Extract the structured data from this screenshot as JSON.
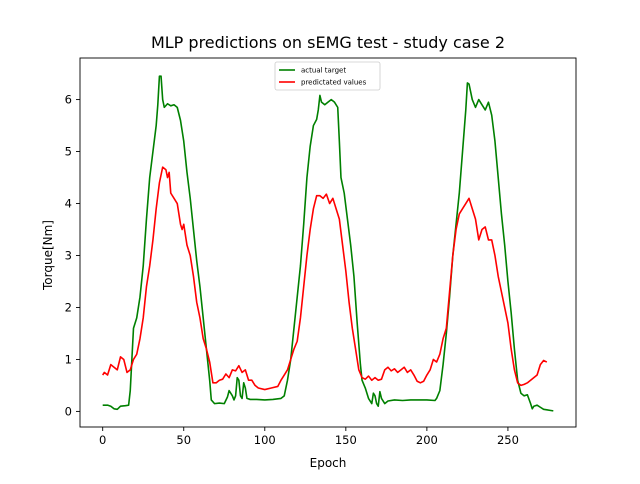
{
  "chart_data": {
    "type": "line",
    "title": "MLP predictions on sEMG test - study case 2",
    "xlabel": "Epoch",
    "ylabel": "Torque[Nm]",
    "xlim": [
      -14,
      292
    ],
    "ylim": [
      -0.3,
      6.8
    ],
    "xticks": [
      0,
      50,
      100,
      150,
      200,
      250
    ],
    "yticks": [
      0,
      1,
      2,
      3,
      4,
      5,
      6
    ],
    "grid": false,
    "legend": "top-center",
    "series": [
      {
        "name": "actual target",
        "color": "#008000",
        "points": [
          [
            0,
            0.12
          ],
          [
            3,
            0.12
          ],
          [
            5,
            0.1
          ],
          [
            7,
            0.05
          ],
          [
            9,
            0.04
          ],
          [
            11,
            0.1
          ],
          [
            14,
            0.11
          ],
          [
            16,
            0.12
          ],
          [
            17,
            0.4
          ],
          [
            18,
            1.0
          ],
          [
            19,
            1.6
          ],
          [
            21,
            1.8
          ],
          [
            23,
            2.2
          ],
          [
            25,
            2.8
          ],
          [
            27,
            3.7
          ],
          [
            29,
            4.5
          ],
          [
            31,
            5.0
          ],
          [
            33,
            5.5
          ],
          [
            34,
            5.9
          ],
          [
            35,
            6.45
          ],
          [
            36,
            6.45
          ],
          [
            37,
            6.0
          ],
          [
            38,
            5.85
          ],
          [
            40,
            5.92
          ],
          [
            42,
            5.88
          ],
          [
            44,
            5.9
          ],
          [
            46,
            5.85
          ],
          [
            48,
            5.6
          ],
          [
            50,
            5.2
          ],
          [
            52,
            4.6
          ],
          [
            54,
            4.1
          ],
          [
            56,
            3.5
          ],
          [
            58,
            2.9
          ],
          [
            60,
            2.4
          ],
          [
            62,
            1.8
          ],
          [
            64,
            1.2
          ],
          [
            66,
            0.6
          ],
          [
            67,
            0.22
          ],
          [
            69,
            0.15
          ],
          [
            72,
            0.16
          ],
          [
            75,
            0.15
          ],
          [
            77,
            0.28
          ],
          [
            78,
            0.4
          ],
          [
            80,
            0.3
          ],
          [
            81,
            0.22
          ],
          [
            82,
            0.3
          ],
          [
            83,
            0.65
          ],
          [
            84,
            0.6
          ],
          [
            85,
            0.3
          ],
          [
            86,
            0.25
          ],
          [
            87,
            0.55
          ],
          [
            88,
            0.45
          ],
          [
            89,
            0.25
          ],
          [
            91,
            0.23
          ],
          [
            95,
            0.23
          ],
          [
            100,
            0.22
          ],
          [
            105,
            0.23
          ],
          [
            110,
            0.25
          ],
          [
            112,
            0.3
          ],
          [
            114,
            0.6
          ],
          [
            116,
            1.0
          ],
          [
            118,
            1.6
          ],
          [
            120,
            2.2
          ],
          [
            122,
            2.8
          ],
          [
            124,
            3.6
          ],
          [
            126,
            4.5
          ],
          [
            128,
            5.1
          ],
          [
            130,
            5.5
          ],
          [
            132,
            5.62
          ],
          [
            133,
            5.8
          ],
          [
            134,
            6.08
          ],
          [
            135,
            5.95
          ],
          [
            137,
            5.9
          ],
          [
            139,
            5.95
          ],
          [
            141,
            6.0
          ],
          [
            143,
            5.95
          ],
          [
            145,
            5.85
          ],
          [
            146,
            5.2
          ],
          [
            147,
            4.5
          ],
          [
            149,
            4.2
          ],
          [
            151,
            3.7
          ],
          [
            153,
            3.2
          ],
          [
            155,
            2.6
          ],
          [
            157,
            1.7
          ],
          [
            159,
            0.9
          ],
          [
            160,
            0.6
          ],
          [
            162,
            0.45
          ],
          [
            164,
            0.25
          ],
          [
            166,
            0.15
          ],
          [
            167,
            0.35
          ],
          [
            168,
            0.3
          ],
          [
            169,
            0.15
          ],
          [
            170,
            0.1
          ],
          [
            171,
            0.38
          ],
          [
            172,
            0.25
          ],
          [
            174,
            0.15
          ],
          [
            176,
            0.2
          ],
          [
            180,
            0.22
          ],
          [
            185,
            0.21
          ],
          [
            190,
            0.22
          ],
          [
            195,
            0.22
          ],
          [
            200,
            0.22
          ],
          [
            205,
            0.21
          ],
          [
            206,
            0.25
          ],
          [
            208,
            0.4
          ],
          [
            210,
            0.9
          ],
          [
            212,
            1.5
          ],
          [
            214,
            2.2
          ],
          [
            216,
            3.0
          ],
          [
            218,
            3.6
          ],
          [
            220,
            4.2
          ],
          [
            222,
            5.0
          ],
          [
            224,
            5.8
          ],
          [
            225,
            6.32
          ],
          [
            226,
            6.3
          ],
          [
            228,
            6.0
          ],
          [
            230,
            5.85
          ],
          [
            232,
            6.0
          ],
          [
            234,
            5.9
          ],
          [
            236,
            5.8
          ],
          [
            238,
            5.95
          ],
          [
            240,
            5.7
          ],
          [
            242,
            5.2
          ],
          [
            244,
            4.5
          ],
          [
            246,
            3.8
          ],
          [
            248,
            3.2
          ],
          [
            250,
            2.5
          ],
          [
            252,
            1.9
          ],
          [
            254,
            1.2
          ],
          [
            256,
            0.6
          ],
          [
            258,
            0.35
          ],
          [
            260,
            0.3
          ],
          [
            262,
            0.32
          ],
          [
            264,
            0.15
          ],
          [
            265,
            0.05
          ],
          [
            266,
            0.1
          ],
          [
            268,
            0.12
          ],
          [
            270,
            0.08
          ],
          [
            272,
            0.04
          ],
          [
            274,
            0.03
          ],
          [
            276,
            0.02
          ],
          [
            278,
            0.01
          ]
        ]
      },
      {
        "name": "predictated values",
        "color": "#ff0000",
        "points": [
          [
            0,
            0.7
          ],
          [
            1,
            0.75
          ],
          [
            3,
            0.7
          ],
          [
            5,
            0.9
          ],
          [
            7,
            0.85
          ],
          [
            9,
            0.8
          ],
          [
            11,
            1.05
          ],
          [
            13,
            1.0
          ],
          [
            15,
            0.75
          ],
          [
            17,
            0.8
          ],
          [
            19,
            1.0
          ],
          [
            21,
            1.1
          ],
          [
            23,
            1.4
          ],
          [
            25,
            1.8
          ],
          [
            27,
            2.4
          ],
          [
            29,
            2.8
          ],
          [
            31,
            3.3
          ],
          [
            33,
            3.9
          ],
          [
            35,
            4.4
          ],
          [
            37,
            4.7
          ],
          [
            39,
            4.65
          ],
          [
            40,
            4.5
          ],
          [
            41,
            4.6
          ],
          [
            42,
            4.2
          ],
          [
            44,
            4.1
          ],
          [
            46,
            4.0
          ],
          [
            48,
            3.6
          ],
          [
            49,
            3.5
          ],
          [
            50,
            3.6
          ],
          [
            52,
            3.2
          ],
          [
            54,
            3.0
          ],
          [
            56,
            2.6
          ],
          [
            58,
            2.1
          ],
          [
            60,
            1.8
          ],
          [
            62,
            1.4
          ],
          [
            64,
            1.2
          ],
          [
            66,
            0.95
          ],
          [
            68,
            0.55
          ],
          [
            70,
            0.55
          ],
          [
            72,
            0.6
          ],
          [
            74,
            0.62
          ],
          [
            76,
            0.72
          ],
          [
            78,
            0.65
          ],
          [
            80,
            0.8
          ],
          [
            82,
            0.78
          ],
          [
            84,
            0.88
          ],
          [
            86,
            0.75
          ],
          [
            88,
            0.8
          ],
          [
            90,
            0.6
          ],
          [
            92,
            0.6
          ],
          [
            94,
            0.5
          ],
          [
            96,
            0.45
          ],
          [
            100,
            0.42
          ],
          [
            104,
            0.45
          ],
          [
            108,
            0.48
          ],
          [
            110,
            0.6
          ],
          [
            112,
            0.7
          ],
          [
            114,
            0.8
          ],
          [
            116,
            1.0
          ],
          [
            118,
            1.2
          ],
          [
            120,
            1.35
          ],
          [
            122,
            1.8
          ],
          [
            124,
            2.4
          ],
          [
            126,
            3.0
          ],
          [
            128,
            3.5
          ],
          [
            130,
            3.9
          ],
          [
            132,
            4.15
          ],
          [
            134,
            4.15
          ],
          [
            136,
            4.1
          ],
          [
            138,
            4.18
          ],
          [
            140,
            4.0
          ],
          [
            142,
            4.1
          ],
          [
            144,
            3.9
          ],
          [
            146,
            3.7
          ],
          [
            148,
            3.2
          ],
          [
            150,
            2.7
          ],
          [
            152,
            2.1
          ],
          [
            154,
            1.6
          ],
          [
            156,
            1.2
          ],
          [
            158,
            0.8
          ],
          [
            160,
            0.65
          ],
          [
            162,
            0.62
          ],
          [
            164,
            0.68
          ],
          [
            166,
            0.6
          ],
          [
            168,
            0.65
          ],
          [
            170,
            0.6
          ],
          [
            172,
            0.62
          ],
          [
            174,
            0.8
          ],
          [
            176,
            0.85
          ],
          [
            178,
            0.78
          ],
          [
            180,
            0.82
          ],
          [
            182,
            0.75
          ],
          [
            184,
            0.8
          ],
          [
            186,
            0.85
          ],
          [
            188,
            0.75
          ],
          [
            190,
            0.8
          ],
          [
            192,
            0.7
          ],
          [
            194,
            0.58
          ],
          [
            196,
            0.55
          ],
          [
            198,
            0.58
          ],
          [
            200,
            0.7
          ],
          [
            202,
            0.8
          ],
          [
            204,
            1.0
          ],
          [
            206,
            0.95
          ],
          [
            208,
            1.1
          ],
          [
            210,
            1.4
          ],
          [
            212,
            1.6
          ],
          [
            214,
            2.3
          ],
          [
            216,
            3.0
          ],
          [
            218,
            3.5
          ],
          [
            220,
            3.8
          ],
          [
            222,
            3.9
          ],
          [
            224,
            4.0
          ],
          [
            226,
            4.1
          ],
          [
            228,
            3.9
          ],
          [
            230,
            3.7
          ],
          [
            232,
            3.3
          ],
          [
            234,
            3.5
          ],
          [
            236,
            3.55
          ],
          [
            238,
            3.3
          ],
          [
            240,
            3.3
          ],
          [
            242,
            3.0
          ],
          [
            244,
            2.6
          ],
          [
            246,
            2.3
          ],
          [
            248,
            2.0
          ],
          [
            250,
            1.7
          ],
          [
            252,
            1.2
          ],
          [
            254,
            0.8
          ],
          [
            256,
            0.55
          ],
          [
            258,
            0.5
          ],
          [
            260,
            0.52
          ],
          [
            262,
            0.55
          ],
          [
            264,
            0.6
          ],
          [
            266,
            0.65
          ],
          [
            268,
            0.7
          ],
          [
            270,
            0.9
          ],
          [
            272,
            0.98
          ],
          [
            274,
            0.95
          ]
        ]
      }
    ]
  }
}
